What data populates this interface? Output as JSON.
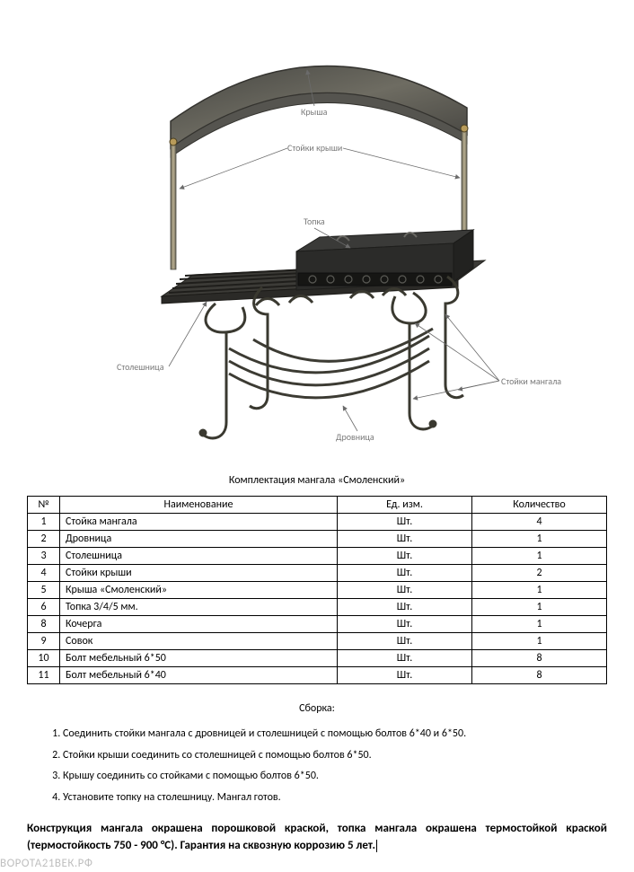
{
  "diagram": {
    "labels": {
      "roof": "Крыша",
      "roofPosts": "Стойки крыши",
      "firebox": "Топка",
      "tabletop": "Столешница",
      "woodrack": "Дровница",
      "grillStands": "Стойки мангала"
    },
    "label_fontsize": 10,
    "label_color": "#7a7a7a",
    "arrow_color": "#6b6b6b",
    "metal_dark": "#3a3a38",
    "metal_mid": "#55544f",
    "metal_light": "#a8a290",
    "gold_accent": "#b89b5a",
    "firebox_fill": "#2b2b29",
    "background": "#ffffff"
  },
  "caption": "Комплектация мангала «Смоленский»",
  "table": {
    "columns": [
      "№",
      "Наименование",
      "Ед. изм.",
      "Количество"
    ],
    "rows": [
      [
        "1",
        "Стойка мангала",
        "Шт.",
        "4"
      ],
      [
        "2",
        "Дровница",
        "Шт.",
        "1"
      ],
      [
        "3",
        "Столешница",
        "Шт.",
        "1"
      ],
      [
        "4",
        "Стойки крыши",
        "Шт.",
        "2"
      ],
      [
        "5",
        "Крыша «Смоленский»",
        "Шт.",
        "1"
      ],
      [
        "6",
        "Топка 3/4/5 мм.",
        "Шт.",
        "1"
      ],
      [
        "8",
        "Кочерга",
        "Шт.",
        "1"
      ],
      [
        "9",
        "Совок",
        "Шт.",
        "1"
      ],
      [
        "10",
        "Болт мебельный 6*50",
        "Шт.",
        "8"
      ],
      [
        "11",
        "Болт мебельный 6*40",
        "Шт.",
        "8"
      ]
    ],
    "border_color": "#000000",
    "cell_fontsize": 12,
    "col_widths_pct": [
      6,
      48,
      23,
      23
    ]
  },
  "assembly": {
    "title": "Сборка:",
    "steps": [
      "Соединить стойки мангала с дровницей и столешницей с помощью болтов 6*40 и 6*50.",
      "Стойки крыши соединить со столешницей с помощью болтов 6*50.",
      "Крышу соединить со стойками с помощью болтов 6*50.",
      "Установите топку на столешницу. Мангал готов."
    ]
  },
  "footerNote": "Конструкция мангала окрашена порошковой краской, топка мангала окрашена термостойкой краской (термостойкость 750 - 900 °С). Гарантия на сквозную коррозию 5 лет.",
  "watermark": "ВОРОТА21ВЕК.РФ"
}
